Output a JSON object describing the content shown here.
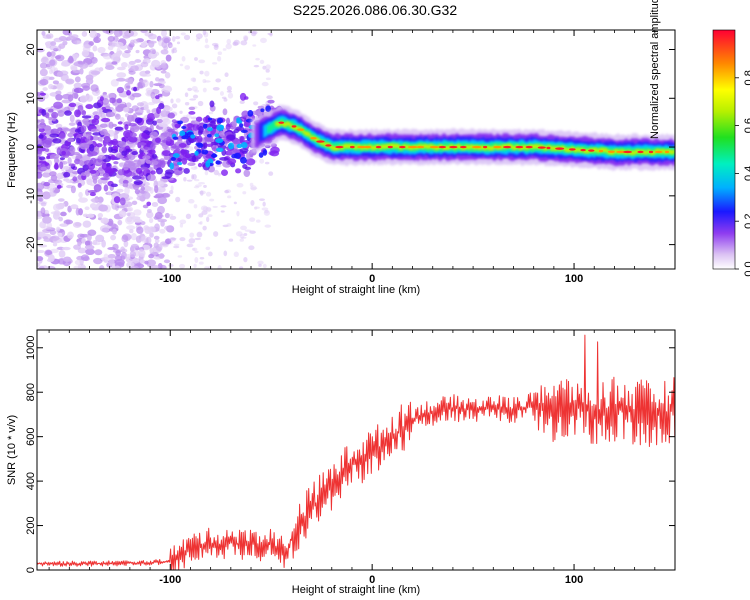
{
  "title": "S225.2026.086.06.30.G32",
  "chart_data": [
    {
      "type": "heatmap",
      "title": "S225.2026.086.06.30.G32",
      "xlabel": "Height of straight line (km)",
      "ylabel": "Frequency (Hz)",
      "xlim": [
        -166,
        150
      ],
      "ylim": [
        -25,
        24
      ],
      "xticks": [
        "-100",
        "0",
        "100"
      ],
      "xtick_values": [
        -100,
        0,
        100
      ],
      "yticks": [
        "-20",
        "-10",
        "0",
        "10",
        "20"
      ],
      "ytick_values": [
        -20,
        -10,
        0,
        10,
        20
      ],
      "colorbar": {
        "label": "Normalized spectral amplitude",
        "range": [
          0,
          1
        ],
        "ticks": [
          "0.0",
          "0.2",
          "0.4",
          "0.6",
          "0.8"
        ],
        "tick_values": [
          0.0,
          0.2,
          0.4,
          0.6,
          0.8
        ]
      },
      "ridge": {
        "x": [
          -100,
          -80,
          -60,
          -50,
          -45,
          -40,
          -35,
          -30,
          -25,
          -20,
          -10,
          0,
          10,
          30,
          50,
          80,
          100,
          120,
          150
        ],
        "freq_hz": [
          0,
          1,
          2,
          4,
          5,
          4.5,
          3.5,
          2,
          1,
          0,
          0,
          0,
          0,
          0,
          0,
          0,
          -0.5,
          -1,
          -1
        ]
      }
    },
    {
      "type": "line",
      "xlabel": "Height of straight line (km)",
      "ylabel": "SNR (10 * v/v)",
      "xlim": [
        -166,
        150
      ],
      "ylim": [
        0,
        1080
      ],
      "xticks": [
        "-100",
        "0",
        "100"
      ],
      "xtick_values": [
        -100,
        0,
        100
      ],
      "yticks": [
        "0",
        "200",
        "400",
        "600",
        "800",
        "1000"
      ],
      "ytick_values": [
        0,
        200,
        400,
        600,
        800,
        1000
      ],
      "color": "#ee3333",
      "series": [
        {
          "name": "SNR",
          "x": [
            -166,
            -150,
            -130,
            -110,
            -100,
            -95,
            -90,
            -85,
            -80,
            -75,
            -70,
            -65,
            -60,
            -55,
            -50,
            -45,
            -42,
            -40,
            -35,
            -30,
            -25,
            -20,
            -15,
            -10,
            -5,
            0,
            5,
            10,
            15,
            20,
            25,
            30,
            40,
            50,
            60,
            70,
            80,
            90,
            100,
            105,
            110,
            115,
            120,
            130,
            140,
            150
          ],
          "y": [
            30,
            28,
            30,
            32,
            40,
            60,
            100,
            110,
            120,
            115,
            130,
            110,
            130,
            110,
            120,
            90,
            50,
            150,
            220,
            280,
            330,
            380,
            430,
            480,
            500,
            530,
            560,
            600,
            640,
            680,
            700,
            710,
            730,
            720,
            730,
            720,
            740,
            720,
            730,
            740,
            700,
            720,
            730,
            710,
            700,
            720
          ]
        }
      ],
      "noise": [
        {
          "x0": -166,
          "x1": -101,
          "amp": 12
        },
        {
          "x0": -100,
          "x1": -41,
          "amp": 70
        },
        {
          "x0": -40,
          "x1": 20,
          "amp": 110
        },
        {
          "x0": 20,
          "x1": 80,
          "amp": 60
        },
        {
          "x0": 80,
          "x1": 150,
          "amp": 150
        }
      ]
    }
  ]
}
